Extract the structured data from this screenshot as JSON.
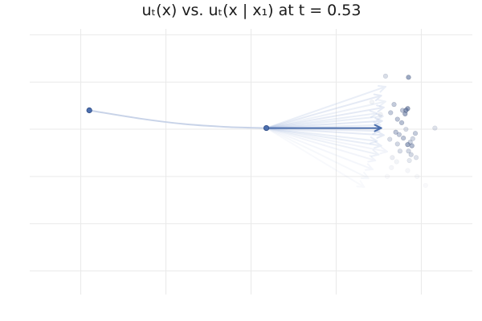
{
  "chart_data": {
    "type": "scatter",
    "title": "uₜ(x) vs. uₜ(x | x₁) at t = 0.53",
    "xlabel": "",
    "ylabel": "",
    "xlim": [
      -1.3,
      3.9
    ],
    "ylim": [
      -2.6,
      1.9
    ],
    "grid": true,
    "x_gridlines": [
      -0.7,
      0.3,
      1.3,
      2.3,
      3.3
    ],
    "y_gridlines": [
      -2.2,
      -1.4,
      -0.6,
      0.2,
      1.0,
      1.8
    ],
    "colors": {
      "accent": "#4c6fae",
      "faint": "#c8d3e8",
      "point": "#5a6f9a"
    },
    "start_point": {
      "x": -0.6,
      "y": 0.52
    },
    "current_point": {
      "x": 1.48,
      "y": 0.22
    },
    "trajectory": [
      {
        "x": -0.6,
        "y": 0.52
      },
      {
        "x": 0.0,
        "y": 0.38
      },
      {
        "x": 0.5,
        "y": 0.29
      },
      {
        "x": 1.0,
        "y": 0.24
      },
      {
        "x": 1.48,
        "y": 0.22
      }
    ],
    "marginal_velocity": {
      "dx": 1.35,
      "dy": 0.0
    },
    "conditional_velocities": [
      {
        "dx": 1.4,
        "dy": 0.7,
        "opacity": 0.25
      },
      {
        "dx": 1.35,
        "dy": 0.55,
        "opacity": 0.3
      },
      {
        "dx": 1.38,
        "dy": 0.35,
        "opacity": 0.3
      },
      {
        "dx": 1.3,
        "dy": 0.25,
        "opacity": 0.25
      },
      {
        "dx": 1.36,
        "dy": 0.12,
        "opacity": 0.35
      },
      {
        "dx": 1.33,
        "dy": -0.05,
        "opacity": 0.3
      },
      {
        "dx": 1.38,
        "dy": -0.12,
        "opacity": 0.3
      },
      {
        "dx": 1.3,
        "dy": -0.22,
        "opacity": 0.25
      },
      {
        "dx": 1.35,
        "dy": -0.3,
        "opacity": 0.25
      },
      {
        "dx": 1.32,
        "dy": -0.45,
        "opacity": 0.2
      },
      {
        "dx": 1.28,
        "dy": -0.55,
        "opacity": 0.15
      },
      {
        "dx": 1.25,
        "dy": -0.7,
        "opacity": 0.12
      },
      {
        "dx": 1.4,
        "dy": 0.45,
        "opacity": 0.2
      },
      {
        "dx": 1.42,
        "dy": -0.4,
        "opacity": 0.15
      },
      {
        "dx": 1.2,
        "dy": -0.85,
        "opacity": 0.1
      },
      {
        "dx": 1.15,
        "dy": -1.0,
        "opacity": 0.08
      },
      {
        "dx": 1.37,
        "dy": 0.2,
        "opacity": 0.25
      },
      {
        "dx": 1.34,
        "dy": 0.05,
        "opacity": 0.25
      }
    ],
    "samples_x1": [
      {
        "x": 3.15,
        "y": 1.08,
        "opacity": 0.75
      },
      {
        "x": 2.88,
        "y": 1.1,
        "opacity": 0.3
      },
      {
        "x": 2.98,
        "y": 0.62,
        "opacity": 0.45
      },
      {
        "x": 3.08,
        "y": 0.52,
        "opacity": 0.5
      },
      {
        "x": 2.94,
        "y": 0.48,
        "opacity": 0.45
      },
      {
        "x": 3.14,
        "y": 0.55,
        "opacity": 0.8
      },
      {
        "x": 3.12,
        "y": 0.52,
        "opacity": 0.8
      },
      {
        "x": 3.11,
        "y": 0.46,
        "opacity": 0.7
      },
      {
        "x": 3.02,
        "y": 0.37,
        "opacity": 0.5
      },
      {
        "x": 3.07,
        "y": 0.31,
        "opacity": 0.55
      },
      {
        "x": 3.0,
        "y": 0.15,
        "opacity": 0.5
      },
      {
        "x": 3.04,
        "y": 0.11,
        "opacity": 0.45
      },
      {
        "x": 3.12,
        "y": 0.2,
        "opacity": 0.3
      },
      {
        "x": 3.23,
        "y": 0.13,
        "opacity": 0.45
      },
      {
        "x": 3.09,
        "y": 0.05,
        "opacity": 0.5
      },
      {
        "x": 3.2,
        "y": 0.04,
        "opacity": 0.35
      },
      {
        "x": 3.17,
        "y": -0.02,
        "opacity": 0.4
      },
      {
        "x": 3.14,
        "y": -0.06,
        "opacity": 0.7
      },
      {
        "x": 3.19,
        "y": -0.08,
        "opacity": 0.6
      },
      {
        "x": 2.93,
        "y": 0.03,
        "opacity": 0.3
      },
      {
        "x": 3.02,
        "y": -0.05,
        "opacity": 0.35
      },
      {
        "x": 3.05,
        "y": -0.17,
        "opacity": 0.3
      },
      {
        "x": 3.15,
        "y": -0.17,
        "opacity": 0.35
      },
      {
        "x": 3.18,
        "y": -0.23,
        "opacity": 0.35
      },
      {
        "x": 3.24,
        "y": -0.28,
        "opacity": 0.25
      },
      {
        "x": 3.46,
        "y": 0.22,
        "opacity": 0.25
      },
      {
        "x": 3.16,
        "y": -0.33,
        "opacity": 0.2
      },
      {
        "x": 2.96,
        "y": -0.28,
        "opacity": 0.15
      },
      {
        "x": 3.01,
        "y": -0.35,
        "opacity": 0.1
      },
      {
        "x": 3.14,
        "y": -0.5,
        "opacity": 0.08
      },
      {
        "x": 2.95,
        "y": -0.45,
        "opacity": 0.08
      },
      {
        "x": 3.25,
        "y": -0.6,
        "opacity": 0.06
      },
      {
        "x": 2.82,
        "y": 0.45,
        "opacity": 0.12
      },
      {
        "x": 2.72,
        "y": 0.66,
        "opacity": 0.1
      },
      {
        "x": 3.35,
        "y": -0.75,
        "opacity": 0.05
      },
      {
        "x": 2.9,
        "y": -0.6,
        "opacity": 0.05
      }
    ]
  }
}
